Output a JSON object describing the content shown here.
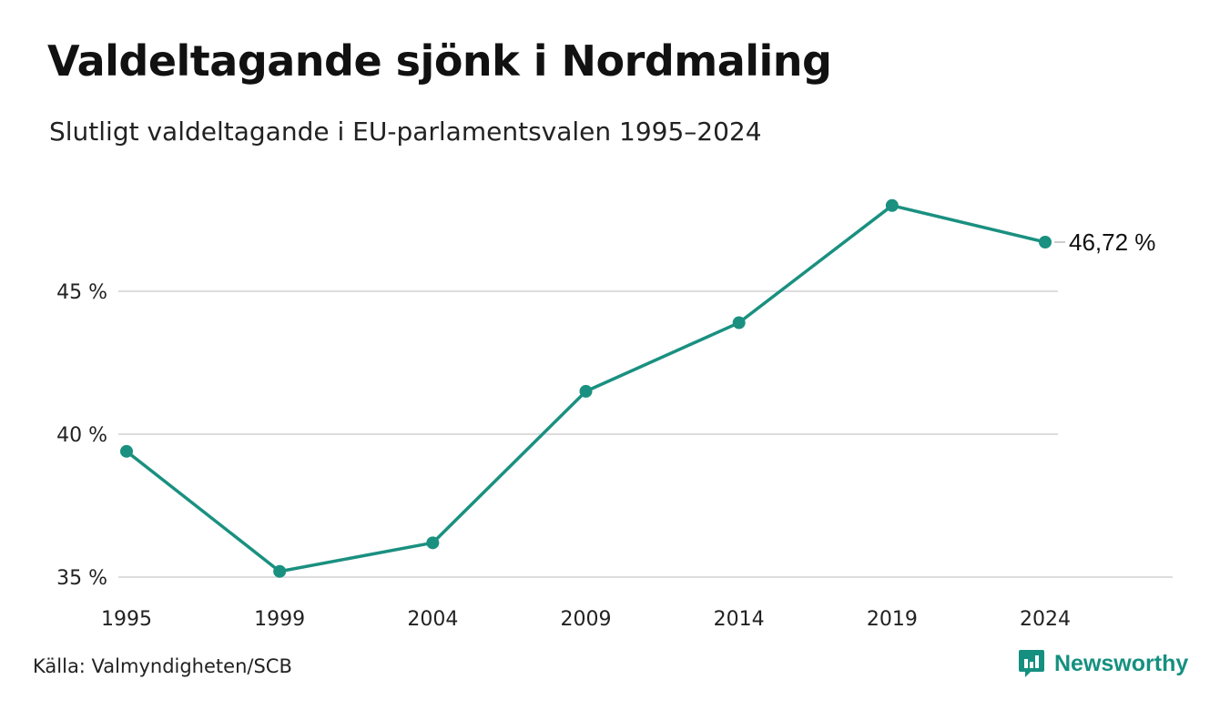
{
  "title": "Valdeltagande sjönk i Nordmaling",
  "subtitle": "Slutligt valdeltagande i EU-parlamentsvalen 1995–2024",
  "source": "Källa: Valmyndigheten/SCB",
  "brand": {
    "name": "Newsworthy",
    "icon": "bar-chart-speech-bubble-icon",
    "color": "#159080"
  },
  "colors": {
    "line": "#1a9080",
    "grid": "#dddddd"
  },
  "chart_data": {
    "type": "line",
    "categories": [
      "1995",
      "1999",
      "2004",
      "2009",
      "2014",
      "2019",
      "2024"
    ],
    "values": [
      39.4,
      35.2,
      36.2,
      41.5,
      43.9,
      48.0,
      46.72
    ],
    "ylim": [
      35,
      50
    ],
    "yticks": [
      {
        "value": 35,
        "label": "35 %"
      },
      {
        "value": 40,
        "label": "40 %"
      },
      {
        "value": 45,
        "label": "45 %"
      }
    ],
    "last_value_label": "46,72 %",
    "grid": true,
    "legend": "none",
    "xlabel": "",
    "ylabel": ""
  }
}
